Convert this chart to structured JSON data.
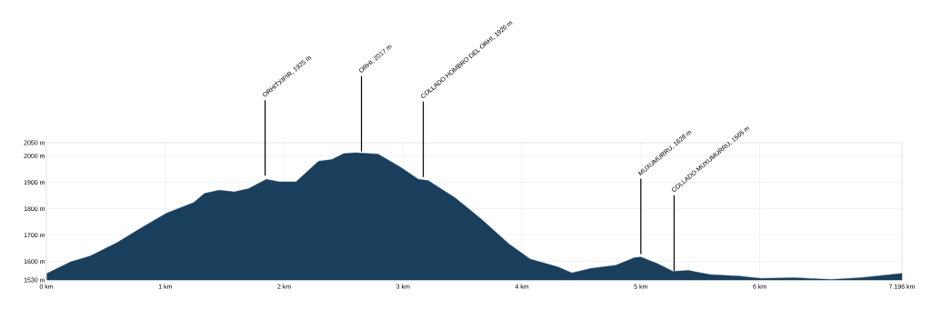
{
  "chart_data": {
    "type": "area",
    "x": [
      0.005,
      0.2,
      0.37,
      0.6,
      0.81,
      1.01,
      1.24,
      1.33,
      1.45,
      1.58,
      1.7,
      1.85,
      1.96,
      2.1,
      2.29,
      2.4,
      2.5,
      2.6,
      2.79,
      2.98,
      3.13,
      3.21,
      3.44,
      3.66,
      3.89,
      4.07,
      4.3,
      4.42,
      4.58,
      4.79,
      4.95,
      5.0,
      5.14,
      5.27,
      5.4,
      5.58,
      5.83,
      6.01,
      6.29,
      6.6,
      6.85,
      7.196
    ],
    "values": [
      1555,
      1598,
      1621,
      1673,
      1731,
      1783,
      1824,
      1858,
      1870,
      1864,
      1876,
      1911,
      1902,
      1902,
      1980,
      1986,
      2009,
      2012,
      2007,
      1957,
      1911,
      1907,
      1841,
      1760,
      1667,
      1609,
      1580,
      1557,
      1574,
      1586,
      1615,
      1617,
      1592,
      1563,
      1566,
      1551,
      1545,
      1536,
      1539,
      1532,
      1539,
      1555
    ],
    "color": "#1a3f5c",
    "xlim": [
      0,
      7.196
    ],
    "ylim": [
      1530,
      2050
    ],
    "xticks": [
      {
        "value": 0,
        "label": "0 km"
      },
      {
        "value": 1,
        "label": "1 km"
      },
      {
        "value": 2,
        "label": "2 km"
      },
      {
        "value": 3,
        "label": "3 km"
      },
      {
        "value": 4,
        "label": "4 km"
      },
      {
        "value": 5,
        "label": "5 km"
      },
      {
        "value": 6,
        "label": "6 km"
      },
      {
        "value": 7.196,
        "label": "7.196 km"
      }
    ],
    "yticks": [
      {
        "value": 1530,
        "label": "1530 m"
      },
      {
        "value": 1600,
        "label": "1600 m"
      },
      {
        "value": 1700,
        "label": "1700 m"
      },
      {
        "value": 1800,
        "label": "1800 m"
      },
      {
        "value": 1900,
        "label": "1900 m"
      },
      {
        "value": 2000,
        "label": "2000 m"
      },
      {
        "value": 2050,
        "label": "2050 m"
      }
    ],
    "grid": true,
    "annotations": [
      {
        "text": "ORHITXIPIR, 1925 m",
        "x": 1.84,
        "y": 1925
      },
      {
        "text": "ORHI, 2017 m",
        "x": 2.65,
        "y": 2017
      },
      {
        "text": "COLLADO HOMBRO DEL ORHI, 1920 m",
        "x": 3.17,
        "y": 1920
      },
      {
        "text": "MUXUMURRU, 1628 m",
        "x": 5.0,
        "y": 1628
      },
      {
        "text": "COLLADO MUXUMURRU, 1565 m",
        "x": 5.28,
        "y": 1565
      }
    ]
  }
}
